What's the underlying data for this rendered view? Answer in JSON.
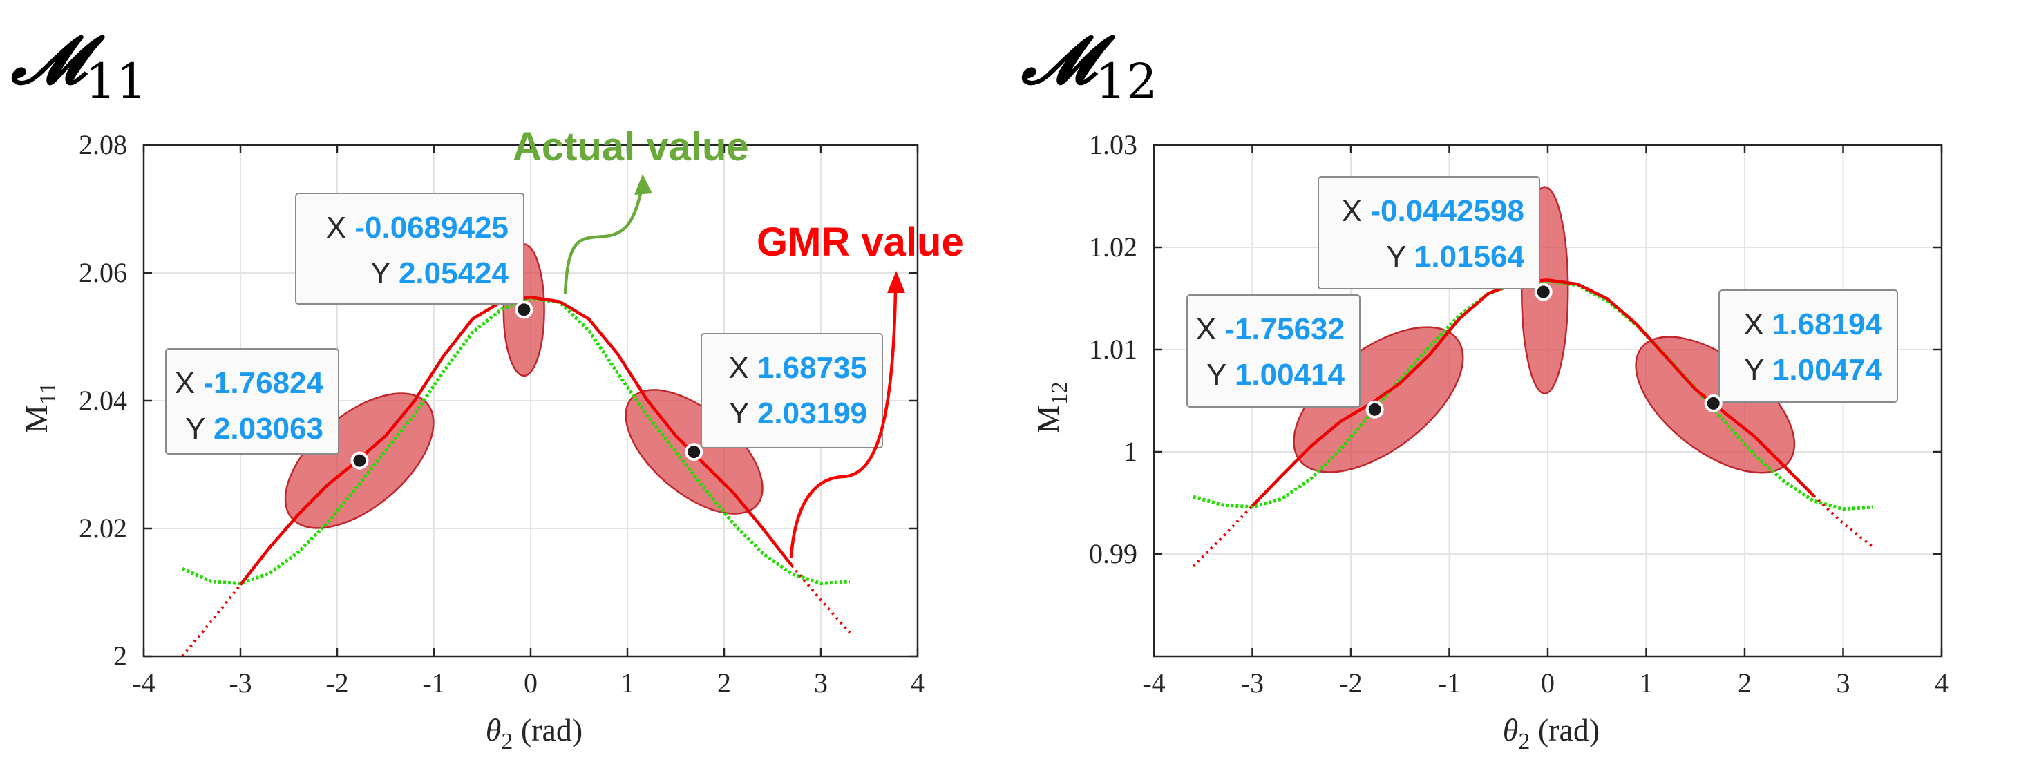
{
  "colors": {
    "gmr": "#ee0000",
    "actual": "#22dd00",
    "ellipse_fill": "#d9484c",
    "ellipse_stroke": "#c0282e",
    "datatip_value": "#1a9af0",
    "actual_anno": "#6aaa3a",
    "gmr_anno": "#ff0000",
    "grid": "#e3e3e3"
  },
  "chart_data": [
    {
      "id": "m11",
      "type": "line",
      "panel_title": "𝓜",
      "panel_title_sub": "11",
      "xlabel": "θ",
      "xlabel_sub": "2",
      "xlabel_unit": " (rad)",
      "ylabel": "M",
      "ylabel_sub": "11",
      "xlim": [
        -4,
        4
      ],
      "ylim": [
        2.0,
        2.08
      ],
      "xticks": [
        -4,
        -3,
        -2,
        -1,
        0,
        1,
        2,
        3,
        4
      ],
      "xtick_labels": [
        "-4",
        "-3",
        "-2",
        "-1",
        "0",
        "1",
        "2",
        "3",
        "4"
      ],
      "yticks": [
        2.0,
        2.02,
        2.04,
        2.06,
        2.08
      ],
      "ytick_labels": [
        "2",
        "2.02",
        "2.04",
        "2.06",
        "2.08"
      ],
      "grid": true,
      "series": [
        {
          "key": "actual",
          "x": [
            -3.6,
            -3.3,
            -3.0,
            -2.7,
            -2.4,
            -2.1,
            -1.8,
            -1.5,
            -1.2,
            -0.9,
            -0.6,
            -0.3,
            0.0,
            0.3,
            0.6,
            0.9,
            1.2,
            1.5,
            1.8,
            2.1,
            2.4,
            2.7,
            3.0,
            3.3
          ],
          "y": [
            2.0137,
            2.0117,
            2.0114,
            2.013,
            2.0163,
            2.0209,
            2.0264,
            2.0322,
            2.0379,
            2.0446,
            2.0507,
            2.0543,
            2.056,
            2.0554,
            2.051,
            2.0443,
            2.0378,
            2.032,
            2.0262,
            2.0207,
            2.0161,
            2.0129,
            2.0114,
            2.0117
          ]
        },
        {
          "key": "gmr",
          "x": [
            -3.6,
            -3.3,
            -3.0,
            -2.7,
            -2.4,
            -2.1,
            -1.8,
            -1.5,
            -1.2,
            -0.9,
            -0.6,
            -0.3,
            0.0,
            0.3,
            0.6,
            0.9,
            1.2,
            1.5,
            1.8,
            2.1,
            2.4,
            2.7,
            3.0,
            3.3
          ],
          "y": [
            2.0,
            2.0055,
            2.0112,
            2.017,
            2.0222,
            2.0268,
            2.0305,
            2.0345,
            2.04,
            2.047,
            2.0528,
            2.0555,
            2.0562,
            2.0555,
            2.0528,
            2.0473,
            2.0402,
            2.0345,
            2.03,
            2.0255,
            2.02,
            2.0142,
            2.0088,
            2.0037
          ],
          "dotted_ends": [
            -3.0,
            2.7
          ]
        }
      ],
      "ellipses": [
        {
          "cx": -1.77,
          "cy": 2.0306,
          "rx": 1.4,
          "ry": 0.0095,
          "angle": 0.0128
        },
        {
          "cx": -0.07,
          "cy": 2.0542,
          "rx": 0.42,
          "ry": 0.0103,
          "angle": 0.0
        },
        {
          "cx": 1.69,
          "cy": 2.032,
          "rx": 1.3,
          "ry": 0.0085,
          "angle": -0.0128
        }
      ],
      "datatips": [
        {
          "x_label": "X",
          "x_value": "-1.76824",
          "y_label": "Y",
          "y_value": "2.03063",
          "px": -1.76824,
          "py": 2.03063
        },
        {
          "x_label": "X",
          "x_value": "-0.0689425",
          "y_label": "Y",
          "y_value": "2.05424",
          "px": -0.0689425,
          "py": 2.05424
        },
        {
          "x_label": "X",
          "x_value": "1.68735",
          "y_label": "Y",
          "y_value": "2.03199",
          "px": 1.68735,
          "py": 2.03199
        }
      ],
      "annotations": [
        {
          "key": "actual",
          "text": "Actual value"
        },
        {
          "key": "gmr",
          "text": "GMR value"
        }
      ]
    },
    {
      "id": "m12",
      "type": "line",
      "panel_title": "𝓜",
      "panel_title_sub": "12",
      "xlabel": "θ",
      "xlabel_sub": "2",
      "xlabel_unit": " (rad)",
      "ylabel": "M",
      "ylabel_sub": "12",
      "xlim": [
        -4,
        4
      ],
      "ylim": [
        0.98,
        1.03
      ],
      "xticks": [
        -4,
        -3,
        -2,
        -1,
        0,
        1,
        2,
        3,
        4
      ],
      "xtick_labels": [
        "-4",
        "-3",
        "-2",
        "-1",
        "0",
        "1",
        "2",
        "3",
        "4"
      ],
      "yticks": [
        0.99,
        1.0,
        1.01,
        1.02,
        1.03
      ],
      "ytick_labels": [
        "0.99",
        "1",
        "1.01",
        "1.02",
        "1.03"
      ],
      "grid": true,
      "series": [
        {
          "key": "actual",
          "x": [
            -3.6,
            -3.3,
            -3.0,
            -2.7,
            -2.4,
            -2.1,
            -1.8,
            -1.5,
            -1.2,
            -0.9,
            -0.6,
            -0.3,
            0.0,
            0.3,
            0.6,
            0.9,
            1.2,
            1.5,
            1.8,
            2.1,
            2.4,
            2.7,
            3.0,
            3.3
          ],
          "y": [
            0.9956,
            0.9948,
            0.9946,
            0.9954,
            0.9974,
            1.0003,
            1.0037,
            1.0071,
            1.0103,
            1.0133,
            1.0155,
            1.0165,
            1.0167,
            1.0163,
            1.0148,
            1.0124,
            1.0094,
            1.0062,
            1.0029,
            0.9997,
            0.9971,
            0.9952,
            0.9944,
            0.9946
          ]
        },
        {
          "key": "gmr",
          "x": [
            -3.6,
            -3.3,
            -3.0,
            -2.7,
            -2.4,
            -2.1,
            -1.8,
            -1.5,
            -1.2,
            -0.9,
            -0.6,
            -0.3,
            0.0,
            0.3,
            0.6,
            0.9,
            1.2,
            1.5,
            1.8,
            2.1,
            2.4,
            2.7,
            3.0,
            3.3
          ],
          "y": [
            0.9888,
            0.9917,
            0.9947,
            0.9977,
            1.0006,
            1.003,
            1.0047,
            1.0067,
            1.0095,
            1.013,
            1.0155,
            1.0166,
            1.0168,
            1.0164,
            1.015,
            1.0125,
            1.0093,
            1.0061,
            1.0038,
            1.0015,
            0.9986,
            0.9957,
            0.993,
            0.9907
          ],
          "dotted_ends": [
            -3.0,
            2.7
          ]
        }
      ],
      "ellipses": [
        {
          "cx": -1.72,
          "cy": 1.0051,
          "rx": 1.6,
          "ry": 0.0062,
          "angle": 0.0074
        },
        {
          "cx": -0.03,
          "cy": 1.0158,
          "rx": 0.47,
          "ry": 0.0101,
          "angle": 0.0
        },
        {
          "cx": 1.7,
          "cy": 1.0046,
          "rx": 1.5,
          "ry": 0.0058,
          "angle": -0.0074
        }
      ],
      "datatips": [
        {
          "x_label": "X",
          "x_value": "-1.75632",
          "y_label": "Y",
          "y_value": "1.00414",
          "px": -1.75632,
          "py": 1.00414
        },
        {
          "x_label": "X",
          "x_value": "-0.0442598",
          "y_label": "Y",
          "y_value": "1.01564",
          "px": -0.0442598,
          "py": 1.01564
        },
        {
          "x_label": "X",
          "x_value": "1.68194",
          "y_label": "Y",
          "y_value": "1.00474",
          "px": 1.68194,
          "py": 1.00474
        }
      ]
    }
  ]
}
